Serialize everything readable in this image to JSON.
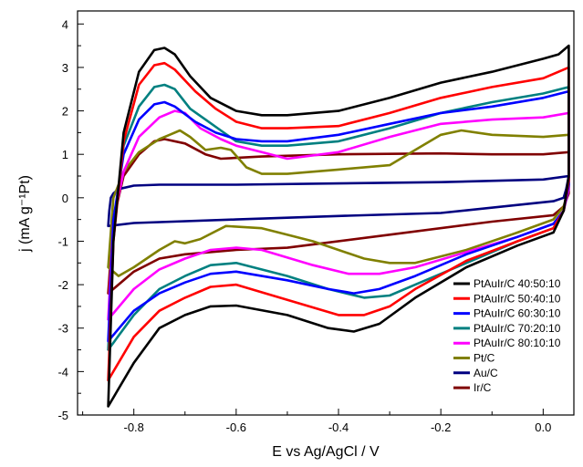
{
  "chart_data": {
    "type": "line",
    "title": "",
    "xlabel": "E vs Ag/AgCl / V",
    "ylabel": "j (mA g⁻¹Pt)",
    "xlim": [
      -0.91,
      0.06
    ],
    "ylim": [
      -5,
      4.3
    ],
    "xticks": [
      -0.8,
      -0.6,
      -0.4,
      -0.2,
      0.0
    ],
    "xtick_labels": [
      "-0.8",
      "-0.6",
      "-0.4",
      "-0.2",
      "0.0"
    ],
    "yticks": [
      -5,
      -4,
      -3,
      -2,
      -1,
      0,
      1,
      2,
      3,
      4
    ],
    "ytick_labels": [
      "-5",
      "-4",
      "-3",
      "-2",
      "-1",
      "0",
      "1",
      "2",
      "3",
      "4"
    ],
    "grid": false,
    "legend": "bottom-right",
    "series": [
      {
        "name": "PtAuIr/C 40:50:10",
        "color": "#000000",
        "anodic": [
          [
            -0.85,
            -4.8
          ],
          [
            -0.84,
            -1.0
          ],
          [
            -0.82,
            1.5
          ],
          [
            -0.79,
            2.9
          ],
          [
            -0.76,
            3.4
          ],
          [
            -0.74,
            3.45
          ],
          [
            -0.72,
            3.3
          ],
          [
            -0.69,
            2.8
          ],
          [
            -0.65,
            2.3
          ],
          [
            -0.6,
            2.0
          ],
          [
            -0.55,
            1.9
          ],
          [
            -0.5,
            1.9
          ],
          [
            -0.4,
            2.0
          ],
          [
            -0.3,
            2.3
          ],
          [
            -0.2,
            2.65
          ],
          [
            -0.1,
            2.9
          ],
          [
            0.0,
            3.2
          ],
          [
            0.03,
            3.3
          ],
          [
            0.05,
            3.5
          ]
        ],
        "cathodic": [
          [
            0.05,
            3.5
          ],
          [
            0.05,
            0.5
          ],
          [
            0.04,
            -0.3
          ],
          [
            0.02,
            -0.8
          ],
          [
            -0.05,
            -1.1
          ],
          [
            -0.15,
            -1.6
          ],
          [
            -0.25,
            -2.3
          ],
          [
            -0.32,
            -2.9
          ],
          [
            -0.37,
            -3.08
          ],
          [
            -0.42,
            -3.0
          ],
          [
            -0.5,
            -2.7
          ],
          [
            -0.6,
            -2.48
          ],
          [
            -0.65,
            -2.5
          ],
          [
            -0.7,
            -2.7
          ],
          [
            -0.75,
            -3.0
          ],
          [
            -0.8,
            -3.8
          ],
          [
            -0.85,
            -4.8
          ]
        ]
      },
      {
        "name": "PtAuIr/C 50:40:10",
        "color": "#ff0000",
        "anodic": [
          [
            -0.85,
            -4.2
          ],
          [
            -0.84,
            -1.0
          ],
          [
            -0.82,
            1.3
          ],
          [
            -0.79,
            2.6
          ],
          [
            -0.76,
            3.05
          ],
          [
            -0.74,
            3.1
          ],
          [
            -0.72,
            2.95
          ],
          [
            -0.68,
            2.45
          ],
          [
            -0.64,
            2.05
          ],
          [
            -0.6,
            1.75
          ],
          [
            -0.55,
            1.6
          ],
          [
            -0.5,
            1.6
          ],
          [
            -0.4,
            1.65
          ],
          [
            -0.3,
            1.95
          ],
          [
            -0.2,
            2.3
          ],
          [
            -0.1,
            2.55
          ],
          [
            0.0,
            2.75
          ],
          [
            0.05,
            3.0
          ]
        ],
        "cathodic": [
          [
            0.05,
            3.0
          ],
          [
            0.05,
            0.4
          ],
          [
            0.04,
            -0.3
          ],
          [
            0.02,
            -0.7
          ],
          [
            -0.05,
            -1.0
          ],
          [
            -0.15,
            -1.45
          ],
          [
            -0.25,
            -2.1
          ],
          [
            -0.3,
            -2.5
          ],
          [
            -0.35,
            -2.7
          ],
          [
            -0.4,
            -2.7
          ],
          [
            -0.5,
            -2.35
          ],
          [
            -0.6,
            -2.0
          ],
          [
            -0.65,
            -2.05
          ],
          [
            -0.7,
            -2.3
          ],
          [
            -0.75,
            -2.6
          ],
          [
            -0.8,
            -3.2
          ],
          [
            -0.85,
            -4.2
          ]
        ]
      },
      {
        "name": "PtAuIr/C 60:30:10",
        "color": "#0000ff",
        "anodic": [
          [
            -0.85,
            -3.3
          ],
          [
            -0.84,
            -0.5
          ],
          [
            -0.82,
            1.0
          ],
          [
            -0.79,
            1.8
          ],
          [
            -0.76,
            2.15
          ],
          [
            -0.74,
            2.2
          ],
          [
            -0.72,
            2.1
          ],
          [
            -0.68,
            1.75
          ],
          [
            -0.64,
            1.5
          ],
          [
            -0.6,
            1.35
          ],
          [
            -0.55,
            1.3
          ],
          [
            -0.5,
            1.3
          ],
          [
            -0.4,
            1.45
          ],
          [
            -0.3,
            1.7
          ],
          [
            -0.2,
            1.95
          ],
          [
            -0.1,
            2.1
          ],
          [
            0.0,
            2.3
          ],
          [
            0.05,
            2.45
          ]
        ],
        "cathodic": [
          [
            0.05,
            2.45
          ],
          [
            0.05,
            0.3
          ],
          [
            0.04,
            -0.3
          ],
          [
            0.02,
            -0.6
          ],
          [
            -0.05,
            -0.9
          ],
          [
            -0.15,
            -1.3
          ],
          [
            -0.25,
            -1.8
          ],
          [
            -0.32,
            -2.1
          ],
          [
            -0.37,
            -2.2
          ],
          [
            -0.42,
            -2.1
          ],
          [
            -0.5,
            -1.9
          ],
          [
            -0.6,
            -1.7
          ],
          [
            -0.65,
            -1.75
          ],
          [
            -0.7,
            -1.95
          ],
          [
            -0.75,
            -2.2
          ],
          [
            -0.8,
            -2.6
          ],
          [
            -0.85,
            -3.3
          ]
        ]
      },
      {
        "name": "PtAuIr/C 70:20:10",
        "color": "#008080",
        "anodic": [
          [
            -0.85,
            -3.5
          ],
          [
            -0.84,
            -0.8
          ],
          [
            -0.82,
            1.2
          ],
          [
            -0.79,
            2.1
          ],
          [
            -0.76,
            2.55
          ],
          [
            -0.74,
            2.6
          ],
          [
            -0.72,
            2.5
          ],
          [
            -0.69,
            2.05
          ],
          [
            -0.66,
            1.8
          ],
          [
            -0.63,
            1.55
          ],
          [
            -0.6,
            1.3
          ],
          [
            -0.55,
            1.2
          ],
          [
            -0.5,
            1.2
          ],
          [
            -0.4,
            1.3
          ],
          [
            -0.3,
            1.6
          ],
          [
            -0.2,
            1.95
          ],
          [
            -0.1,
            2.2
          ],
          [
            0.0,
            2.4
          ],
          [
            0.05,
            2.55
          ]
        ],
        "cathodic": [
          [
            0.05,
            2.55
          ],
          [
            0.05,
            0.3
          ],
          [
            0.04,
            -0.3
          ],
          [
            0.02,
            -0.7
          ],
          [
            -0.05,
            -1.0
          ],
          [
            -0.15,
            -1.5
          ],
          [
            -0.25,
            -2.0
          ],
          [
            -0.3,
            -2.25
          ],
          [
            -0.35,
            -2.3
          ],
          [
            -0.42,
            -2.1
          ],
          [
            -0.5,
            -1.8
          ],
          [
            -0.6,
            -1.5
          ],
          [
            -0.65,
            -1.55
          ],
          [
            -0.7,
            -1.8
          ],
          [
            -0.75,
            -2.1
          ],
          [
            -0.8,
            -2.7
          ],
          [
            -0.85,
            -3.5
          ]
        ]
      },
      {
        "name": "PtAuIr/C 80:10:10",
        "color": "#ff00ff",
        "anodic": [
          [
            -0.85,
            -2.8
          ],
          [
            -0.84,
            -0.5
          ],
          [
            -0.82,
            0.6
          ],
          [
            -0.79,
            1.4
          ],
          [
            -0.75,
            1.85
          ],
          [
            -0.72,
            2.0
          ],
          [
            -0.7,
            1.95
          ],
          [
            -0.67,
            1.6
          ],
          [
            -0.63,
            1.35
          ],
          [
            -0.6,
            1.2
          ],
          [
            -0.55,
            1.05
          ],
          [
            -0.5,
            0.9
          ],
          [
            -0.4,
            1.05
          ],
          [
            -0.3,
            1.4
          ],
          [
            -0.2,
            1.7
          ],
          [
            -0.1,
            1.8
          ],
          [
            0.0,
            1.85
          ],
          [
            0.05,
            1.95
          ]
        ],
        "cathodic": [
          [
            0.05,
            1.95
          ],
          [
            0.05,
            0.2
          ],
          [
            0.04,
            -0.3
          ],
          [
            0.02,
            -0.6
          ],
          [
            -0.05,
            -0.9
          ],
          [
            -0.15,
            -1.25
          ],
          [
            -0.25,
            -1.6
          ],
          [
            -0.32,
            -1.75
          ],
          [
            -0.38,
            -1.75
          ],
          [
            -0.45,
            -1.55
          ],
          [
            -0.55,
            -1.2
          ],
          [
            -0.6,
            -1.15
          ],
          [
            -0.65,
            -1.2
          ],
          [
            -0.7,
            -1.4
          ],
          [
            -0.75,
            -1.65
          ],
          [
            -0.8,
            -2.1
          ],
          [
            -0.85,
            -2.8
          ]
        ]
      },
      {
        "name": "Pt/C",
        "color": "#808000",
        "anodic": [
          [
            -0.85,
            -1.6
          ],
          [
            -0.84,
            0.0
          ],
          [
            -0.82,
            0.6
          ],
          [
            -0.79,
            1.05
          ],
          [
            -0.75,
            1.35
          ],
          [
            -0.73,
            1.45
          ],
          [
            -0.71,
            1.55
          ],
          [
            -0.69,
            1.4
          ],
          [
            -0.66,
            1.1
          ],
          [
            -0.63,
            1.15
          ],
          [
            -0.61,
            1.1
          ],
          [
            -0.58,
            0.7
          ],
          [
            -0.55,
            0.55
          ],
          [
            -0.5,
            0.55
          ],
          [
            -0.4,
            0.65
          ],
          [
            -0.3,
            0.75
          ],
          [
            -0.25,
            1.1
          ],
          [
            -0.2,
            1.45
          ],
          [
            -0.16,
            1.55
          ],
          [
            -0.1,
            1.45
          ],
          [
            0.0,
            1.4
          ],
          [
            0.05,
            1.45
          ]
        ],
        "cathodic": [
          [
            0.05,
            1.45
          ],
          [
            0.05,
            0.2
          ],
          [
            0.04,
            -0.2
          ],
          [
            0.02,
            -0.5
          ],
          [
            -0.05,
            -0.8
          ],
          [
            -0.15,
            -1.2
          ],
          [
            -0.25,
            -1.5
          ],
          [
            -0.3,
            -1.5
          ],
          [
            -0.35,
            -1.4
          ],
          [
            -0.45,
            -1.0
          ],
          [
            -0.55,
            -0.7
          ],
          [
            -0.62,
            -0.65
          ],
          [
            -0.67,
            -0.95
          ],
          [
            -0.7,
            -1.05
          ],
          [
            -0.72,
            -1.0
          ],
          [
            -0.75,
            -1.2
          ],
          [
            -0.8,
            -1.6
          ],
          [
            -0.83,
            -1.8
          ],
          [
            -0.85,
            -1.6
          ]
        ]
      },
      {
        "name": "Au/C",
        "color": "#000080",
        "anodic": [
          [
            -0.85,
            -0.65
          ],
          [
            -0.848,
            -0.3
          ],
          [
            -0.845,
            0.0
          ],
          [
            -0.84,
            0.1
          ],
          [
            -0.83,
            0.2
          ],
          [
            -0.8,
            0.28
          ],
          [
            -0.75,
            0.3
          ],
          [
            -0.6,
            0.3
          ],
          [
            -0.4,
            0.33
          ],
          [
            -0.2,
            0.36
          ],
          [
            0.0,
            0.42
          ],
          [
            0.05,
            0.5
          ]
        ],
        "cathodic": [
          [
            0.05,
            0.5
          ],
          [
            0.045,
            0.2
          ],
          [
            0.04,
            0.0
          ],
          [
            0.02,
            -0.08
          ],
          [
            -0.2,
            -0.35
          ],
          [
            -0.4,
            -0.42
          ],
          [
            -0.6,
            -0.5
          ],
          [
            -0.8,
            -0.58
          ],
          [
            -0.85,
            -0.65
          ]
        ]
      },
      {
        "name": "Ir/C",
        "color": "#800000",
        "anodic": [
          [
            -0.85,
            -2.2
          ],
          [
            -0.84,
            -0.5
          ],
          [
            -0.82,
            0.5
          ],
          [
            -0.79,
            1.0
          ],
          [
            -0.76,
            1.3
          ],
          [
            -0.74,
            1.35
          ],
          [
            -0.7,
            1.25
          ],
          [
            -0.66,
            1.0
          ],
          [
            -0.63,
            0.9
          ],
          [
            -0.55,
            0.95
          ],
          [
            -0.4,
            1.0
          ],
          [
            -0.2,
            1.02
          ],
          [
            -0.1,
            1.0
          ],
          [
            0.0,
            1.0
          ],
          [
            0.05,
            1.05
          ]
        ],
        "cathodic": [
          [
            0.05,
            1.05
          ],
          [
            0.05,
            0.1
          ],
          [
            0.04,
            -0.2
          ],
          [
            0.02,
            -0.4
          ],
          [
            -0.1,
            -0.55
          ],
          [
            -0.3,
            -0.85
          ],
          [
            -0.5,
            -1.15
          ],
          [
            -0.6,
            -1.2
          ],
          [
            -0.7,
            -1.3
          ],
          [
            -0.75,
            -1.4
          ],
          [
            -0.8,
            -1.7
          ],
          [
            -0.85,
            -2.2
          ]
        ]
      }
    ]
  }
}
